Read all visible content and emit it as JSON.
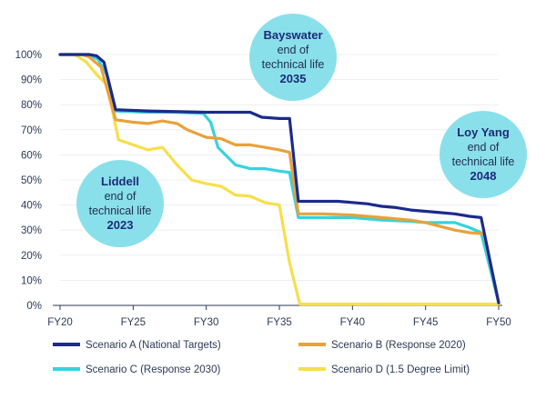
{
  "colors": {
    "bubble": "#8ae0ea",
    "axis": "#2b3a55",
    "grid": "#e3e5ea"
  },
  "chart_data": {
    "type": "line",
    "title": "",
    "xlabel": "",
    "ylabel": "",
    "xlim": [
      20,
      50
    ],
    "ylim": [
      0,
      100
    ],
    "x_ticks": [
      {
        "value": 20,
        "label": "FY20"
      },
      {
        "value": 25,
        "label": "FY25"
      },
      {
        "value": 30,
        "label": "FY30"
      },
      {
        "value": 35,
        "label": "FY35"
      },
      {
        "value": 40,
        "label": "FY40"
      },
      {
        "value": 45,
        "label": "FY45"
      },
      {
        "value": 50,
        "label": "FY50"
      }
    ],
    "y_ticks": [
      {
        "value": 0,
        "label": "0%"
      },
      {
        "value": 10,
        "label": "10%"
      },
      {
        "value": 20,
        "label": "20%"
      },
      {
        "value": 30,
        "label": "30%"
      },
      {
        "value": 40,
        "label": "40%"
      },
      {
        "value": 50,
        "label": "50%"
      },
      {
        "value": 60,
        "label": "60%"
      },
      {
        "value": 70,
        "label": "70%"
      },
      {
        "value": 80,
        "label": "80%"
      },
      {
        "value": 90,
        "label": "90%"
      },
      {
        "value": 100,
        "label": "100%"
      }
    ],
    "grid": "horizontal",
    "legend_position": "bottom",
    "series": [
      {
        "name": "Scenario A (National Targets)",
        "color": "#1b2a8c",
        "points": [
          [
            20,
            100
          ],
          [
            22,
            100
          ],
          [
            22.5,
            99.5
          ],
          [
            23,
            97
          ],
          [
            23.8,
            78
          ],
          [
            26,
            77.5
          ],
          [
            30,
            77
          ],
          [
            31,
            77
          ],
          [
            32,
            77
          ],
          [
            33,
            77
          ],
          [
            33.8,
            75
          ],
          [
            35,
            74.5
          ],
          [
            35.7,
            74.5
          ],
          [
            36.3,
            41.5
          ],
          [
            38,
            41.5
          ],
          [
            39,
            41.5
          ],
          [
            40,
            41
          ],
          [
            41,
            40.5
          ],
          [
            42,
            39.5
          ],
          [
            43,
            39
          ],
          [
            44,
            38
          ],
          [
            45,
            37.5
          ],
          [
            46,
            37
          ],
          [
            47,
            36.5
          ],
          [
            48,
            35.5
          ],
          [
            48.8,
            35
          ],
          [
            49.5,
            15
          ],
          [
            50,
            1
          ]
        ]
      },
      {
        "name": "Scenario B (Response 2020)",
        "color": "#e8a23a",
        "points": [
          [
            20,
            100
          ],
          [
            21.5,
            100
          ],
          [
            22,
            99
          ],
          [
            22.8,
            95
          ],
          [
            23.8,
            74
          ],
          [
            25,
            73
          ],
          [
            26,
            72.5
          ],
          [
            27,
            73.5
          ],
          [
            28,
            72.5
          ],
          [
            28.7,
            70
          ],
          [
            30,
            67
          ],
          [
            31,
            66.5
          ],
          [
            32,
            64
          ],
          [
            33,
            64
          ],
          [
            34,
            63
          ],
          [
            35,
            62
          ],
          [
            35.7,
            61
          ],
          [
            36.3,
            36.5
          ],
          [
            38,
            36.5
          ],
          [
            40,
            36
          ],
          [
            42,
            35
          ],
          [
            44,
            34
          ],
          [
            45,
            33
          ],
          [
            46,
            31.5
          ],
          [
            47,
            30
          ],
          [
            48,
            29
          ],
          [
            49,
            28.5
          ],
          [
            50,
            1
          ]
        ]
      },
      {
        "name": "Scenario C (Response 2030)",
        "color": "#35d3df",
        "points": [
          [
            20,
            100
          ],
          [
            22,
            100
          ],
          [
            22.6,
            98
          ],
          [
            23.2,
            92
          ],
          [
            23.8,
            77.5
          ],
          [
            26,
            77
          ],
          [
            28,
            77
          ],
          [
            29.8,
            76.5
          ],
          [
            30.3,
            73
          ],
          [
            30.8,
            63
          ],
          [
            32,
            56
          ],
          [
            33,
            54.5
          ],
          [
            34,
            54.5
          ],
          [
            35,
            53.5
          ],
          [
            35.7,
            53
          ],
          [
            36.3,
            35
          ],
          [
            38,
            35
          ],
          [
            40,
            35
          ],
          [
            42,
            34
          ],
          [
            44,
            33.5
          ],
          [
            45,
            33
          ],
          [
            46,
            33
          ],
          [
            47,
            33
          ],
          [
            48,
            31
          ],
          [
            48.8,
            29
          ],
          [
            50,
            1
          ]
        ]
      },
      {
        "name": "Scenario D (1.5 Degree Limit)",
        "color": "#f7df4a",
        "points": [
          [
            20,
            100
          ],
          [
            21,
            100
          ],
          [
            21.8,
            97
          ],
          [
            22.5,
            92
          ],
          [
            23.2,
            88
          ],
          [
            24,
            66
          ],
          [
            25,
            64
          ],
          [
            26,
            62
          ],
          [
            27,
            63
          ],
          [
            28,
            56
          ],
          [
            29,
            50
          ],
          [
            30,
            48.5
          ],
          [
            31,
            47.5
          ],
          [
            32,
            44
          ],
          [
            33,
            43.5
          ],
          [
            34,
            41
          ],
          [
            35,
            40
          ],
          [
            35.7,
            17
          ],
          [
            36.4,
            0.5
          ],
          [
            38,
            0.5
          ],
          [
            40,
            0.5
          ],
          [
            45,
            0.5
          ],
          [
            50,
            0.5
          ]
        ]
      }
    ],
    "annotations": [
      {
        "title": "Liddell",
        "lines": [
          "end of",
          "technical life"
        ],
        "year": "2023"
      },
      {
        "title": "Bayswater",
        "lines": [
          "end of",
          "technical life"
        ],
        "year": "2035"
      },
      {
        "title": "Loy Yang",
        "lines": [
          "end of",
          "technical life"
        ],
        "year": "2048"
      }
    ]
  }
}
